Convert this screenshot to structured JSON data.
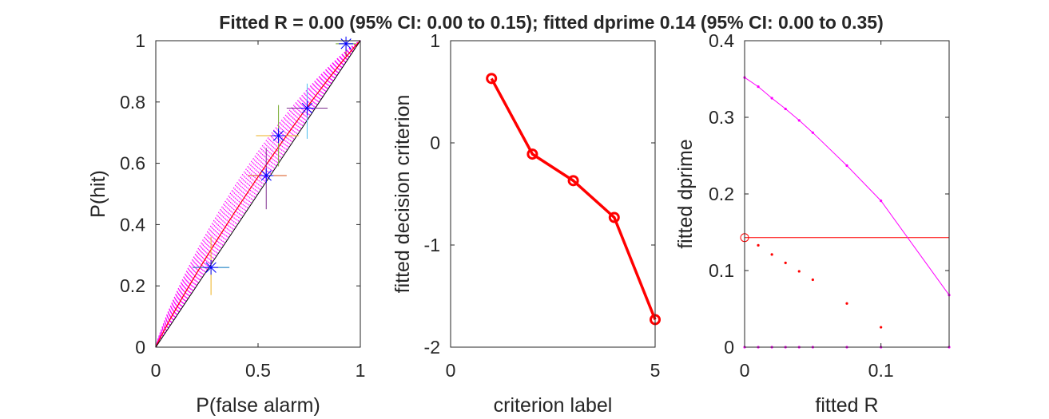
{
  "figure_title": "Fitted R = 0.00 (95% CI: 0.00 to 0.15); fitted dprime 0.14 (95% CI: 0.00 to 0.35)",
  "colors": {
    "axes": "#262626",
    "fit_line": "#ff0000",
    "bootstrap": "#ff00ff",
    "markers": "#0000ff",
    "errorbars": [
      "#0072bd",
      "#d95319",
      "#edb120",
      "#7e2f8e",
      "#77ac30",
      "#4dbeee",
      "#a2142f"
    ]
  },
  "chart_data": [
    {
      "type": "scatter",
      "xlabel": "P(false alarm)",
      "ylabel": "P(hit)",
      "xlim": [
        0,
        1
      ],
      "ylim": [
        0,
        1
      ],
      "xticks": [
        0,
        0.5,
        1
      ],
      "xtick_labels": [
        "0",
        "0.5",
        "1"
      ],
      "yticks": [
        0,
        0.2,
        0.4,
        0.6,
        0.8,
        1
      ],
      "ytick_labels": [
        "0",
        "0.2",
        "0.4",
        "0.6",
        "0.8",
        "1"
      ],
      "points": [
        {
          "x": 0.27,
          "y": 0.26,
          "xerr": [
            0.18,
            0.36
          ],
          "yerr": [
            0.17,
            0.36
          ]
        },
        {
          "x": 0.54,
          "y": 0.56,
          "xerr": [
            0.45,
            0.64
          ],
          "yerr": [
            0.45,
            0.65
          ]
        },
        {
          "x": 0.6,
          "y": 0.69,
          "xerr": [
            0.49,
            0.7
          ],
          "yerr": [
            0.59,
            0.79
          ]
        },
        {
          "x": 0.74,
          "y": 0.78,
          "xerr": [
            0.64,
            0.84
          ],
          "yerr": [
            0.68,
            0.86
          ]
        },
        {
          "x": 0.93,
          "y": 0.99,
          "xerr": [
            0.88,
            0.98
          ],
          "yerr": [
            0.95,
            1.0
          ]
        }
      ],
      "chance_line": {
        "x": [
          0,
          1
        ],
        "y": [
          0,
          1
        ]
      },
      "fitted_dprime": 0.14,
      "bootstrap_dprime_range": [
        0.02,
        0.35
      ]
    },
    {
      "type": "line",
      "xlabel": "criterion label",
      "ylabel": "fitted decision criterion",
      "xlim": [
        0,
        5
      ],
      "ylim": [
        -2,
        1
      ],
      "xticks": [
        0,
        5
      ],
      "xtick_labels": [
        "0",
        "5"
      ],
      "yticks": [
        -2,
        -1,
        0,
        1
      ],
      "ytick_labels": [
        "-2",
        "-1",
        "0",
        "1"
      ],
      "x": [
        1,
        2,
        3,
        4,
        5
      ],
      "y": [
        0.63,
        -0.11,
        -0.37,
        -0.73,
        -1.73
      ],
      "marker": "circle"
    },
    {
      "type": "line",
      "xlabel": "fitted R",
      "ylabel": "fitted dprime",
      "xlim": [
        0,
        0.15
      ],
      "ylim": [
        0,
        0.4
      ],
      "xticks": [
        0,
        0.1
      ],
      "xtick_labels": [
        "0",
        "0.1"
      ],
      "yticks": [
        0,
        0.1,
        0.2,
        0.3,
        0.4
      ],
      "ytick_labels": [
        "0",
        "0.1",
        "0.2",
        "0.3",
        "0.4"
      ],
      "series": [
        {
          "x": [
            0,
            0.01,
            0.02,
            0.03,
            0.04,
            0.05,
            0.075,
            0.1,
            0.15
          ],
          "y": [
            0.352,
            0.34,
            0.325,
            0.311,
            0.296,
            0.28,
            0.237,
            0.191,
            0.068
          ]
        },
        {
          "x": [
            0,
            0.01,
            0.02,
            0.03,
            0.04,
            0.05,
            0.075,
            0.1,
            0.15
          ],
          "y": [
            0,
            0,
            0,
            0,
            0,
            0,
            0,
            0,
            0
          ]
        },
        {
          "x": [
            0.01,
            0.02,
            0.03,
            0.04,
            0.05,
            0.075,
            0.1
          ],
          "y": [
            0.133,
            0.121,
            0.11,
            0.099,
            0.088,
            0.057,
            0.026
          ]
        }
      ],
      "fit_point": {
        "x": 0,
        "y": 0.143
      },
      "fit_hline_y": 0.143,
      "fit_vline_x": 0
    }
  ]
}
